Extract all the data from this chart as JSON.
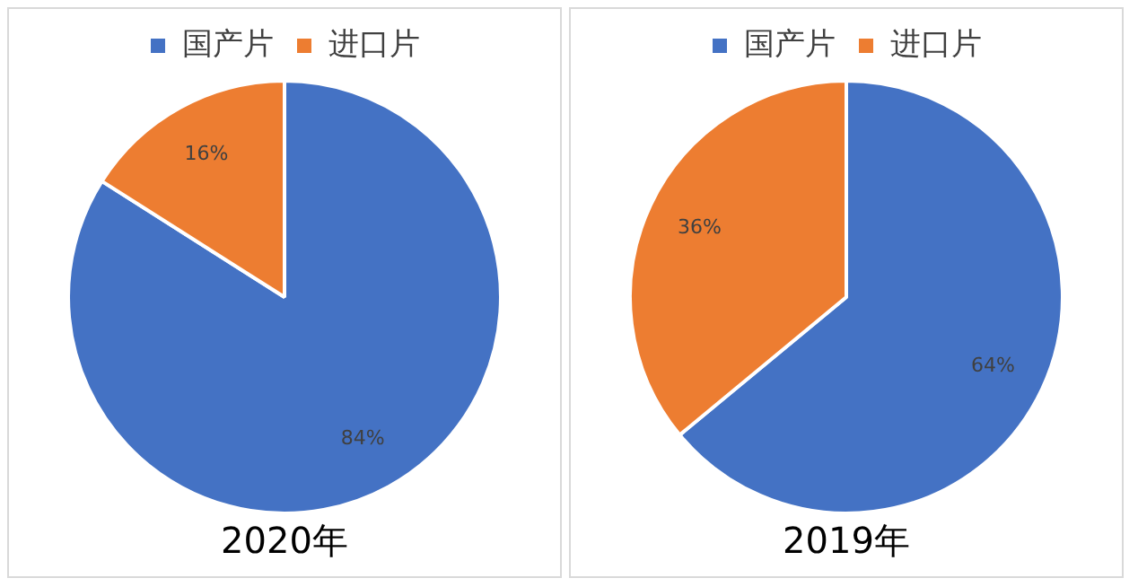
{
  "chart_data": [
    {
      "type": "pie",
      "title": "2020年",
      "categories": [
        "国产片",
        "进口片"
      ],
      "values": [
        84,
        16
      ],
      "colors": [
        "#4472c4",
        "#ed7d31"
      ],
      "value_labels": [
        "84%",
        "16%"
      ],
      "legend": "top"
    },
    {
      "type": "pie",
      "title": "2019年",
      "categories": [
        "国产片",
        "进口片"
      ],
      "values": [
        64,
        36
      ],
      "colors": [
        "#4472c4",
        "#ed7d31"
      ],
      "value_labels": [
        "64%",
        "36%"
      ],
      "legend": "top"
    }
  ]
}
